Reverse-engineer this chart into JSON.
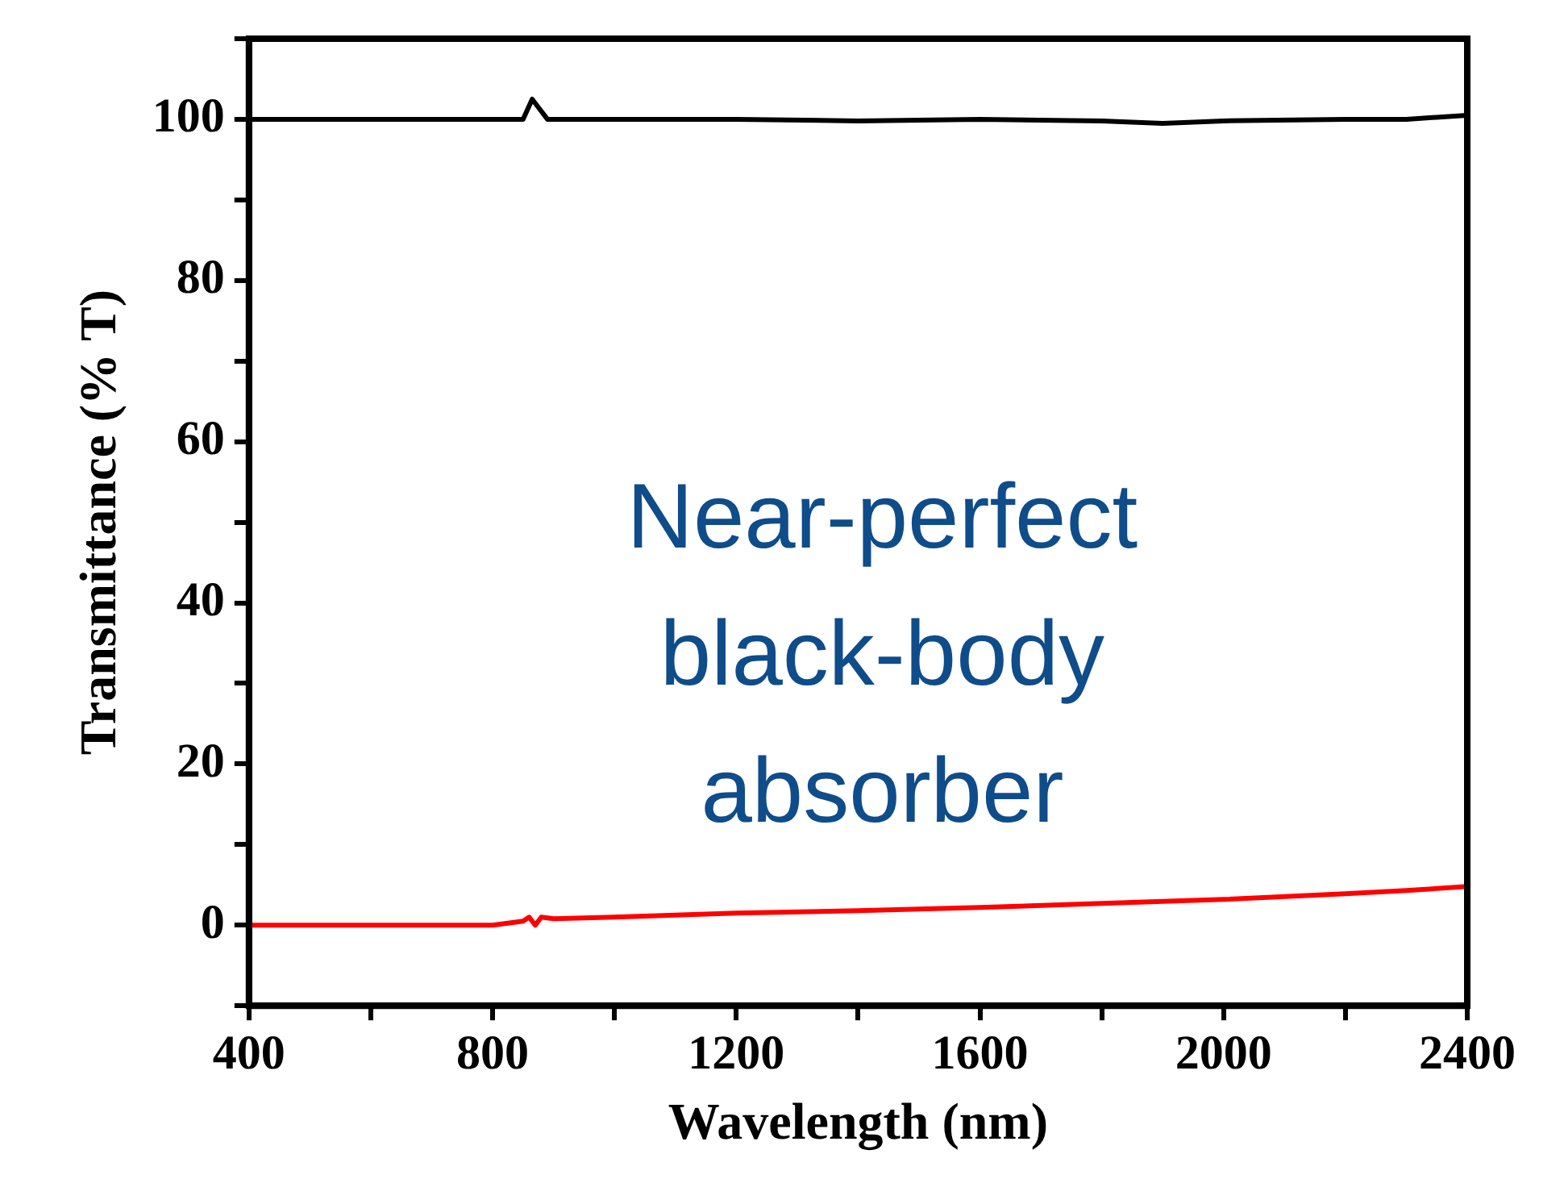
{
  "chart_data": {
    "type": "line",
    "xlabel": "Wavelength (nm)",
    "ylabel": "Transmittance (% T)",
    "annotations": [
      "Near-perfect black-body absorber"
    ],
    "xlim": [
      400,
      2400
    ],
    "xticks": [
      400,
      {
        "value": 600,
        "label": null
      },
      800,
      {
        "value": 1000,
        "label": null
      },
      1200,
      {
        "value": 1400,
        "label": null
      },
      1600,
      {
        "value": 1800,
        "label": null
      },
      2000,
      {
        "value": 2200,
        "label": null
      },
      2400
    ],
    "ylim": [
      -10,
      110
    ],
    "yticks": [
      {
        "value": -10,
        "label": null
      },
      0,
      {
        "value": 10,
        "label": null
      },
      20,
      {
        "value": 30,
        "label": null
      },
      40,
      {
        "value": 50,
        "label": null
      },
      60,
      {
        "value": 70,
        "label": null
      },
      80,
      {
        "value": 90,
        "label": null
      },
      100,
      {
        "value": 110,
        "label": null
      }
    ],
    "grid": false,
    "legend": false,
    "marker": "none",
    "line_style": "solid",
    "series": [
      {
        "color": "#000000",
        "x": [
          400,
          500,
          600,
          700,
          800,
          850,
          865,
          875,
          890,
          920,
          1000,
          1200,
          1400,
          1600,
          1800,
          1900,
          2000,
          2200,
          2300,
          2400
        ],
        "values": [
          100,
          100,
          100,
          100,
          100,
          100,
          102.5,
          101.5,
          100,
          100,
          100,
          100,
          99.8,
          100,
          99.8,
          99.5,
          99.8,
          100,
          100,
          100.5
        ]
      },
      {
        "color": "#ff0000",
        "x": [
          400,
          600,
          800,
          850,
          860,
          870,
          880,
          900,
          1000,
          1200,
          1400,
          1600,
          1800,
          2000,
          2200,
          2300,
          2400
        ],
        "values": [
          0,
          0,
          0,
          0.5,
          1,
          0,
          1,
          0.8,
          1,
          1.5,
          1.8,
          2.2,
          2.7,
          3.2,
          3.9,
          4.3,
          4.8
        ]
      }
    ]
  }
}
